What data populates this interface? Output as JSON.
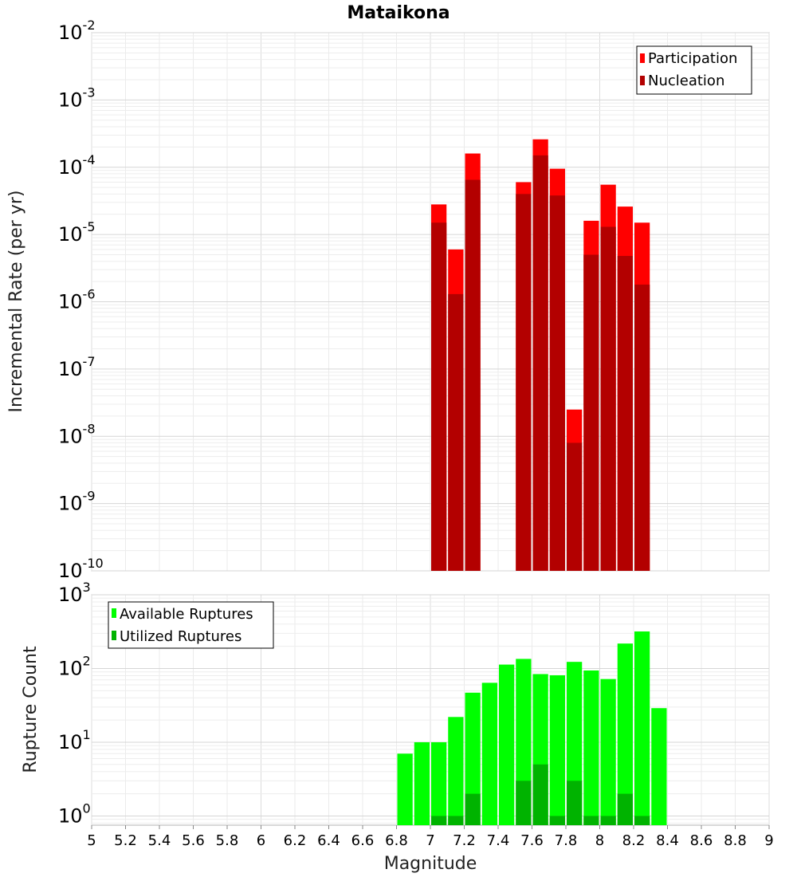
{
  "chart_data": [
    {
      "type": "bar",
      "title": "Mataikona",
      "ylabel": "Incremental Rate (per yr)",
      "xlabel": "",
      "xlim": [
        5,
        9
      ],
      "ylim": [
        1e-10,
        0.01
      ],
      "yscale": "log",
      "grid": true,
      "legend_position": "top-right",
      "ytick_exponents": [
        "-10",
        "-9",
        "-8",
        "-7",
        "-6",
        "-5",
        "-4",
        "-3",
        "-2"
      ],
      "bar_width": 0.1,
      "series": [
        {
          "name": "Participation",
          "color": "#ff0000",
          "x": [
            7.05,
            7.15,
            7.25,
            7.55,
            7.65,
            7.75,
            7.85,
            7.95,
            8.05,
            8.15,
            8.25
          ],
          "values": [
            2.8e-05,
            6e-06,
            0.00016,
            6e-05,
            0.00026,
            9.5e-05,
            2.5e-08,
            1.6e-05,
            5.5e-05,
            2.6e-05,
            1.5e-05
          ]
        },
        {
          "name": "Nucleation",
          "color": "#b30000",
          "x": [
            7.05,
            7.15,
            7.25,
            7.55,
            7.65,
            7.75,
            7.85,
            7.95,
            8.05,
            8.15,
            8.25
          ],
          "values": [
            1.5e-05,
            1.3e-06,
            6.5e-05,
            4e-05,
            0.00015,
            3.8e-05,
            8e-09,
            5e-06,
            1.3e-05,
            4.8e-06,
            1.8e-06
          ]
        }
      ]
    },
    {
      "type": "bar",
      "title": "",
      "ylabel": "Rupture Count",
      "xlabel": "Magnitude",
      "xlim": [
        5,
        9
      ],
      "ylim": [
        0.75,
        1000
      ],
      "yscale": "log",
      "grid": true,
      "legend_position": "top-left",
      "ytick_exponents": [
        "0",
        "1",
        "2",
        "3"
      ],
      "xtick_labels": [
        "5",
        "5.2",
        "5.4",
        "5.6",
        "5.8",
        "6",
        "6.2",
        "6.4",
        "6.6",
        "6.8",
        "7",
        "7.2",
        "7.4",
        "7.6",
        "7.8",
        "8",
        "8.2",
        "8.4",
        "8.6",
        "8.8",
        "9"
      ],
      "bar_width": 0.1,
      "series": [
        {
          "name": "Available Ruptures",
          "color": "#00ff00",
          "x": [
            6.85,
            6.95,
            7.05,
            7.15,
            7.25,
            7.35,
            7.45,
            7.55,
            7.65,
            7.75,
            7.85,
            7.95,
            8.05,
            8.15,
            8.25,
            8.35
          ],
          "values": [
            7,
            10,
            10,
            22,
            47,
            64,
            113,
            135,
            84,
            81,
            123,
            94,
            72,
            218,
            318,
            29
          ]
        },
        {
          "name": "Utilized Ruptures",
          "color": "#00b300",
          "x": [
            7.05,
            7.15,
            7.25,
            7.55,
            7.65,
            7.75,
            7.85,
            7.95,
            8.05,
            8.15,
            8.25
          ],
          "values": [
            1,
            1,
            2,
            3,
            5,
            1,
            3,
            1,
            1,
            2,
            1
          ]
        }
      ]
    }
  ]
}
